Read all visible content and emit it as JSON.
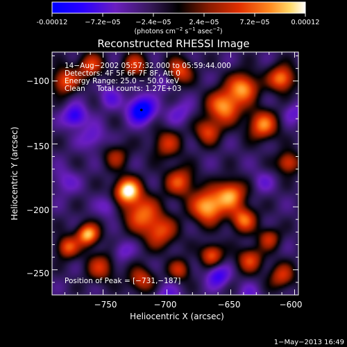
{
  "colorbar": {
    "tick_labels": [
      "-0.00012",
      "−7.2e−05",
      "−2.4e−05",
      "2.4e−05",
      "7.2e−05",
      "0.00012"
    ],
    "min": -0.00012,
    "max": 0.00012
  },
  "colorbar_units_parts": [
    "(photons cm",
    "−2",
    " s",
    "−1",
    " asec",
    "−2",
    ")"
  ],
  "chart_data": {
    "type": "heatmap",
    "title": "Reconstructed RHESSI Image",
    "xlabel": "Heliocentric X (arcsec)",
    "ylabel": "Heliocentric Y (arcsec)",
    "xlim": [
      -790,
      -597
    ],
    "ylim": [
      -270,
      -77
    ],
    "xticks": [
      -750,
      -700,
      -650,
      -600
    ],
    "yticks": [
      -100,
      -150,
      -200,
      -250
    ],
    "xtick_labels": [
      "−750",
      "−700",
      "−650",
      "−600"
    ],
    "ytick_labels": [
      "−100",
      "−150",
      "−200",
      "−250"
    ],
    "annotations": [
      "14−Aug−2002 05:57:32.000 to 05:59:44.000",
      "Detectors: 4F 5F 6F 7F 8F, Att 0",
      "Energy Range: 25.0 − 50.0 keV",
      "Clean     Total counts: 1.27E+03"
    ],
    "peak_label": "Position of Peak = [−731,−187]",
    "peak": [
      -731,
      -187
    ],
    "min_marker": [
      -720,
      -123
    ],
    "colormap": [
      "#0000ff",
      "#4400ee",
      "#6a1ec0",
      "#2a1850",
      "#000000",
      "#8a1b00",
      "#dd2a00",
      "#ff7a10",
      "#ffd060",
      "#ffffff"
    ],
    "blobs": [
      {
        "x": -731,
        "y": -187,
        "a": 1.0,
        "s": 7
      },
      {
        "x": -720,
        "y": -205,
        "a": 0.55,
        "s": 10
      },
      {
        "x": -705,
        "y": -220,
        "a": 0.45,
        "s": 9
      },
      {
        "x": -668,
        "y": -200,
        "a": 0.85,
        "s": 9
      },
      {
        "x": -650,
        "y": -190,
        "a": 0.7,
        "s": 8
      },
      {
        "x": -640,
        "y": -210,
        "a": 0.6,
        "s": 7
      },
      {
        "x": -690,
        "y": -180,
        "a": 0.5,
        "s": 8
      },
      {
        "x": -762,
        "y": -222,
        "a": 0.85,
        "s": 6
      },
      {
        "x": -778,
        "y": -232,
        "a": 0.55,
        "s": 6
      },
      {
        "x": -655,
        "y": -120,
        "a": 0.75,
        "s": 9
      },
      {
        "x": -640,
        "y": -105,
        "a": 0.7,
        "s": 8
      },
      {
        "x": -625,
        "y": -135,
        "a": 0.65,
        "s": 8
      },
      {
        "x": -610,
        "y": -98,
        "a": 0.7,
        "s": 7
      },
      {
        "x": -668,
        "y": -140,
        "a": 0.45,
        "s": 7
      },
      {
        "x": -605,
        "y": -165,
        "a": 0.5,
        "s": 6
      },
      {
        "x": -780,
        "y": -100,
        "a": 0.55,
        "s": 7
      },
      {
        "x": -760,
        "y": -88,
        "a": 0.45,
        "s": 7
      },
      {
        "x": -725,
        "y": -88,
        "a": 0.4,
        "s": 7
      },
      {
        "x": -690,
        "y": -92,
        "a": 0.5,
        "s": 7
      },
      {
        "x": -700,
        "y": -150,
        "a": 0.35,
        "s": 8
      },
      {
        "x": -752,
        "y": -248,
        "a": 0.35,
        "s": 8
      },
      {
        "x": -720,
        "y": -258,
        "a": 0.4,
        "s": 7
      },
      {
        "x": -690,
        "y": -250,
        "a": 0.35,
        "s": 6
      },
      {
        "x": -665,
        "y": -238,
        "a": 0.55,
        "s": 6
      },
      {
        "x": -635,
        "y": -242,
        "a": 0.45,
        "s": 7
      },
      {
        "x": -610,
        "y": -255,
        "a": 0.4,
        "s": 7
      },
      {
        "x": -620,
        "y": -225,
        "a": 0.35,
        "s": 6
      },
      {
        "x": -740,
        "y": -160,
        "a": 0.25,
        "s": 7
      },
      {
        "x": -720,
        "y": -123,
        "a": -1.0,
        "s": 7
      },
      {
        "x": -772,
        "y": -128,
        "a": -0.7,
        "s": 6
      },
      {
        "x": -745,
        "y": -113,
        "a": -0.35,
        "s": 6
      },
      {
        "x": -758,
        "y": -145,
        "a": -0.35,
        "s": 7
      },
      {
        "x": -660,
        "y": -255,
        "a": -0.6,
        "s": 6
      },
      {
        "x": -700,
        "y": -272,
        "a": -0.35,
        "s": 7
      },
      {
        "x": -780,
        "y": -180,
        "a": -0.3,
        "s": 7
      },
      {
        "x": -745,
        "y": -200,
        "a": -0.3,
        "s": 6
      },
      {
        "x": -735,
        "y": -235,
        "a": -0.3,
        "s": 6
      },
      {
        "x": -625,
        "y": -180,
        "a": -0.25,
        "s": 6
      },
      {
        "x": -690,
        "y": -125,
        "a": -0.3,
        "s": 7
      },
      {
        "x": -600,
        "y": -125,
        "a": -0.3,
        "s": 6
      },
      {
        "x": -635,
        "y": -270,
        "a": -0.25,
        "s": 6
      },
      {
        "x": -705,
        "y": -100,
        "a": -0.25,
        "s": 6
      }
    ],
    "background_level": -0.22
  },
  "footer_date": "1−May−2013 16:49"
}
